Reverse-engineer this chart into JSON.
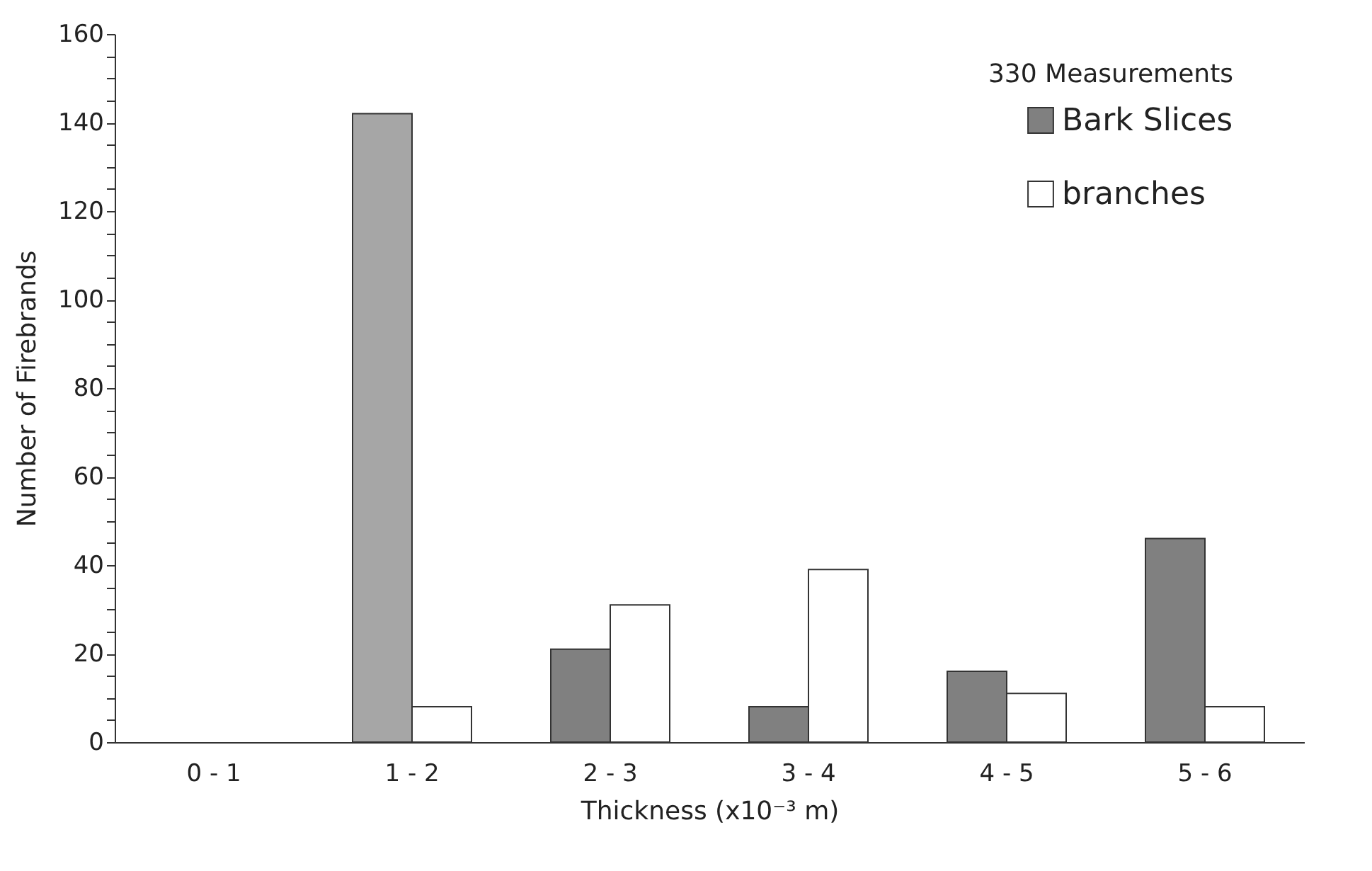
{
  "chart_data": {
    "type": "bar",
    "xlabel": "Thickness (x10⁻³ m)",
    "ylabel": "Number of Firebrands",
    "categories": [
      "0 - 1",
      "1 - 2",
      "2 - 3",
      "3 - 4",
      "4 - 5",
      "5 - 6"
    ],
    "series": [
      {
        "name": "Bark Slices",
        "color": "#808080",
        "colors": [
          "#808080",
          "#a6a6a6",
          "#808080",
          "#808080",
          "#808080",
          "#808080"
        ],
        "values": [
          0,
          142,
          21,
          8,
          16,
          46
        ]
      },
      {
        "name": "branches",
        "color": "#ffffff",
        "values": [
          0,
          8,
          31,
          39,
          11,
          8
        ]
      }
    ],
    "ylim": [
      0,
      160
    ],
    "yticks": [
      0,
      {
        "value": 5,
        "label": null
      },
      {
        "value": 10,
        "label": null
      },
      {
        "value": 15,
        "label": null
      },
      20,
      {
        "value": 25,
        "label": null
      },
      {
        "value": 30,
        "label": null
      },
      {
        "value": 35,
        "label": null
      },
      40,
      {
        "value": 45,
        "label": null
      },
      {
        "value": 50,
        "label": null
      },
      {
        "value": 55,
        "label": null
      },
      60,
      {
        "value": 65,
        "label": null
      },
      {
        "value": 70,
        "label": null
      },
      {
        "value": 75,
        "label": null
      },
      80,
      {
        "value": 85,
        "label": null
      },
      {
        "value": 90,
        "label": null
      },
      {
        "value": 95,
        "label": null
      },
      100,
      {
        "value": 105,
        "label": null
      },
      {
        "value": 110,
        "label": null
      },
      {
        "value": 115,
        "label": null
      },
      120,
      {
        "value": 125,
        "label": null
      },
      {
        "value": 130,
        "label": null
      },
      {
        "value": 135,
        "label": null
      },
      140,
      {
        "value": 145,
        "label": null
      },
      {
        "value": 150,
        "label": null
      },
      {
        "value": 155,
        "label": null
      },
      160
    ],
    "annotations": [
      "330 Measurements"
    ],
    "legend": "top right",
    "grid": false
  }
}
